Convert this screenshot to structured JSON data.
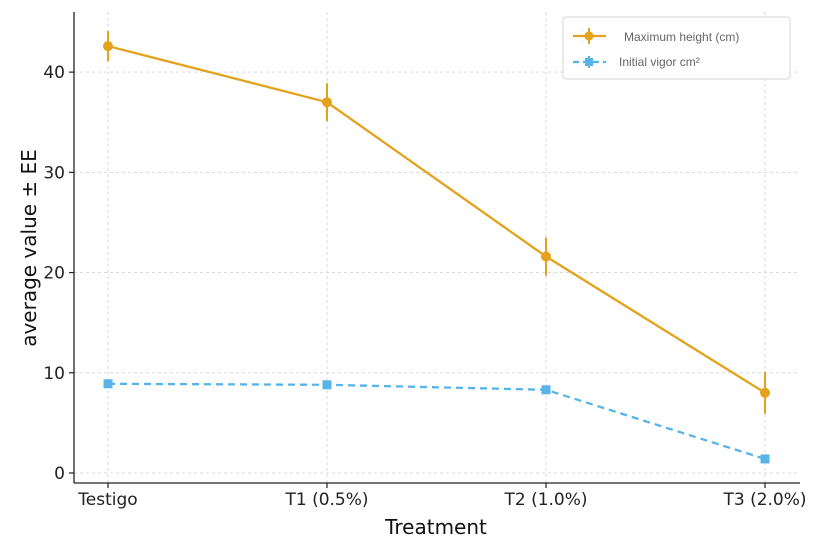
{
  "chart_data": {
    "type": "line",
    "title": "",
    "xlabel": "Treatment",
    "ylabel": "average value  ± EE",
    "categories": [
      "Testigo",
      "T1 (0.5%)",
      "T2 (1.0%)",
      "T3 (2.0%)"
    ],
    "ylim": [
      -1,
      46
    ],
    "yticks": [
      0,
      10,
      20,
      30,
      40
    ],
    "grid": true,
    "legend_position": "top-right",
    "series": [
      {
        "name": "Maximum height (cm)",
        "values": [
          42.6,
          37.0,
          21.6,
          8.0
        ],
        "errors": [
          1.5,
          1.9,
          1.9,
          2.1
        ],
        "color": "#E3A21A",
        "marker": "circle",
        "linestyle": "solid"
      },
      {
        "name": "Initial vigor cm²",
        "values": [
          8.9,
          8.8,
          8.3,
          1.4
        ],
        "errors": [
          0.2,
          0.2,
          0.2,
          0.2
        ],
        "color": "#56B4E9",
        "marker": "square",
        "linestyle": "dashed"
      }
    ]
  }
}
